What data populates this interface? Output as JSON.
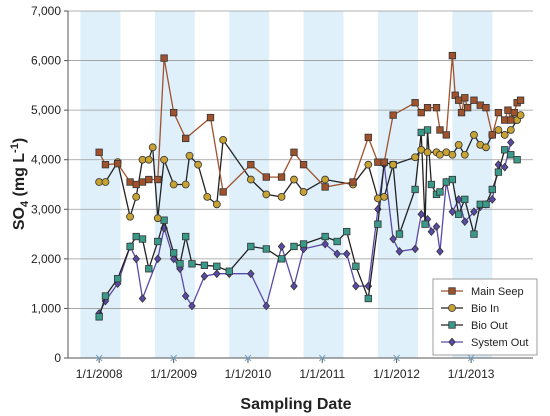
{
  "chart_data": {
    "type": "line",
    "title": "",
    "xlabel": "Sampling Date",
    "ylabel_main": "SO",
    "ylabel_sub": "4",
    "ylabel_unit_open": " (mg L",
    "ylabel_unit_sup": "-1",
    "ylabel_unit_close": ")",
    "ylim": [
      0,
      7000
    ],
    "y_ticks": [
      "0",
      "1,000",
      "2,000",
      "3,000",
      "4,000",
      "5,000",
      "6,000",
      "7,000"
    ],
    "y_tick_values": [
      0,
      1000,
      2000,
      3000,
      4000,
      5000,
      6000,
      7000
    ],
    "xlim": [
      "2007-08-01",
      "2013-11-01"
    ],
    "x_ticks": [
      "1/1/2008",
      "1/1/2009",
      "1/1/2010",
      "1/1/2011",
      "1/1/2012",
      "1/1/2013"
    ],
    "x_tick_dates": [
      "2008-01-01",
      "2009-01-01",
      "2010-01-01",
      "2011-01-01",
      "2012-01-01",
      "2013-01-01"
    ],
    "band_color": "#dff0fb",
    "bands": [
      [
        "2007-10-01",
        "2008-04-15"
      ],
      [
        "2008-10-01",
        "2009-04-15"
      ],
      [
        "2009-10-01",
        "2010-04-15"
      ],
      [
        "2010-10-01",
        "2011-04-15"
      ],
      [
        "2011-10-01",
        "2012-04-15"
      ],
      [
        "2012-10-01",
        "2013-04-15"
      ]
    ],
    "grid": "horizontal",
    "legend": "bottom-right",
    "series": [
      {
        "name": "Main Seep",
        "color": "#a0522d",
        "fill": "#a0522d",
        "marker": "square",
        "points": [
          [
            "2008-01-01",
            4150
          ],
          [
            "2008-02-01",
            3900
          ],
          [
            "2008-04-01",
            3920
          ],
          [
            "2008-06-01",
            3550
          ],
          [
            "2008-07-01",
            3500
          ],
          [
            "2008-08-01",
            3550
          ],
          [
            "2008-09-01",
            3600
          ],
          [
            "2008-10-15",
            3600
          ],
          [
            "2008-11-15",
            6050
          ],
          [
            "2009-01-01",
            4950
          ],
          [
            "2009-03-01",
            4430
          ],
          [
            "2009-07-01",
            4850
          ],
          [
            "2009-09-01",
            3350
          ],
          [
            "2010-01-15",
            3900
          ],
          [
            "2010-04-01",
            3650
          ],
          [
            "2010-06-15",
            3650
          ],
          [
            "2010-08-15",
            4150
          ],
          [
            "2010-10-01",
            3900
          ],
          [
            "2011-01-15",
            3450
          ],
          [
            "2011-06-01",
            3550
          ],
          [
            "2011-08-15",
            4450
          ],
          [
            "2011-10-01",
            3950
          ],
          [
            "2011-11-01",
            3950
          ],
          [
            "2011-12-15",
            4900
          ],
          [
            "2012-04-01",
            5150
          ],
          [
            "2012-05-01",
            4950
          ],
          [
            "2012-06-01",
            5050
          ],
          [
            "2012-07-15",
            5050
          ],
          [
            "2012-08-01",
            4600
          ],
          [
            "2012-09-01",
            4500
          ],
          [
            "2012-10-01",
            6100
          ],
          [
            "2012-10-15",
            5300
          ],
          [
            "2012-11-01",
            5200
          ],
          [
            "2012-11-15",
            4950
          ],
          [
            "2012-12-01",
            5250
          ],
          [
            "2012-12-15",
            5050
          ],
          [
            "2013-01-15",
            5200
          ],
          [
            "2013-02-15",
            5100
          ],
          [
            "2013-03-15",
            5050
          ],
          [
            "2013-04-15",
            4500
          ],
          [
            "2013-05-15",
            4950
          ],
          [
            "2013-06-15",
            4800
          ],
          [
            "2013-07-01",
            5000
          ],
          [
            "2013-07-15",
            4800
          ],
          [
            "2013-08-01",
            4950
          ],
          [
            "2013-08-15",
            5150
          ],
          [
            "2013-09-01",
            5200
          ]
        ]
      },
      {
        "name": "Bio In",
        "color": "#222222",
        "fill": "#c8a232",
        "marker": "circle",
        "points": [
          [
            "2008-01-01",
            3550
          ],
          [
            "2008-02-01",
            3550
          ],
          [
            "2008-04-01",
            3950
          ],
          [
            "2008-06-01",
            2850
          ],
          [
            "2008-07-01",
            3250
          ],
          [
            "2008-08-01",
            4000
          ],
          [
            "2008-09-01",
            4000
          ],
          [
            "2008-09-20",
            4250
          ],
          [
            "2008-10-15",
            2820
          ],
          [
            "2008-11-15",
            4000
          ],
          [
            "2009-01-01",
            3500
          ],
          [
            "2009-03-01",
            3500
          ],
          [
            "2009-03-20",
            4080
          ],
          [
            "2009-05-01",
            3900
          ],
          [
            "2009-06-15",
            3250
          ],
          [
            "2009-08-01",
            3100
          ],
          [
            "2009-09-01",
            4400
          ],
          [
            "2010-01-15",
            3600
          ],
          [
            "2010-04-01",
            3300
          ],
          [
            "2010-06-15",
            3250
          ],
          [
            "2010-08-15",
            3600
          ],
          [
            "2010-10-01",
            3350
          ],
          [
            "2011-01-15",
            3600
          ],
          [
            "2011-06-01",
            3500
          ],
          [
            "2011-08-15",
            3900
          ],
          [
            "2011-10-01",
            3220
          ],
          [
            "2011-11-01",
            3250
          ],
          [
            "2011-12-15",
            3900
          ],
          [
            "2012-04-01",
            4050
          ],
          [
            "2012-05-01",
            4200
          ],
          [
            "2012-06-01",
            4150
          ],
          [
            "2012-07-15",
            4150
          ],
          [
            "2012-08-01",
            4100
          ],
          [
            "2012-09-01",
            4150
          ],
          [
            "2012-10-01",
            4100
          ],
          [
            "2012-11-01",
            4300
          ],
          [
            "2012-12-01",
            4100
          ],
          [
            "2013-01-15",
            4500
          ],
          [
            "2013-02-15",
            4300
          ],
          [
            "2013-03-15",
            4250
          ],
          [
            "2013-04-15",
            4500
          ],
          [
            "2013-05-15",
            4600
          ],
          [
            "2013-06-15",
            4500
          ],
          [
            "2013-07-15",
            4600
          ],
          [
            "2013-08-15",
            4800
          ],
          [
            "2013-09-01",
            4900
          ]
        ]
      },
      {
        "name": "Bio Out",
        "color": "#222222",
        "fill": "#3a9a8a",
        "marker": "square",
        "points": [
          [
            "2008-01-01",
            830
          ],
          [
            "2008-02-01",
            1250
          ],
          [
            "2008-04-01",
            1600
          ],
          [
            "2008-06-01",
            2250
          ],
          [
            "2008-07-01",
            2450
          ],
          [
            "2008-08-01",
            2400
          ],
          [
            "2008-09-01",
            1800
          ],
          [
            "2008-10-15",
            2350
          ],
          [
            "2008-11-15",
            2780
          ],
          [
            "2009-01-01",
            2120
          ],
          [
            "2009-02-01",
            1900
          ],
          [
            "2009-03-01",
            2450
          ],
          [
            "2009-04-01",
            1900
          ],
          [
            "2009-06-01",
            1870
          ],
          [
            "2009-08-01",
            1850
          ],
          [
            "2009-10-01",
            1750
          ],
          [
            "2010-01-15",
            2250
          ],
          [
            "2010-04-01",
            2200
          ],
          [
            "2010-06-15",
            2000
          ],
          [
            "2010-08-15",
            2250
          ],
          [
            "2010-10-01",
            2300
          ],
          [
            "2011-01-15",
            2450
          ],
          [
            "2011-03-15",
            2350
          ],
          [
            "2011-05-01",
            2550
          ],
          [
            "2011-06-15",
            1850
          ],
          [
            "2011-08-15",
            1200
          ],
          [
            "2011-10-01",
            2700
          ],
          [
            "2011-11-01",
            3950
          ],
          [
            "2011-12-15",
            3900
          ],
          [
            "2012-01-15",
            2500
          ],
          [
            "2012-04-01",
            3400
          ],
          [
            "2012-05-01",
            4550
          ],
          [
            "2012-05-20",
            2700
          ],
          [
            "2012-06-01",
            4600
          ],
          [
            "2012-06-20",
            3500
          ],
          [
            "2012-07-15",
            3300
          ],
          [
            "2012-08-01",
            3350
          ],
          [
            "2012-09-01",
            3550
          ],
          [
            "2012-10-01",
            3600
          ],
          [
            "2012-11-01",
            2900
          ],
          [
            "2012-12-01",
            3200
          ],
          [
            "2013-01-15",
            2500
          ],
          [
            "2013-02-15",
            3100
          ],
          [
            "2013-03-15",
            3100
          ],
          [
            "2013-04-15",
            3400
          ],
          [
            "2013-05-15",
            3750
          ],
          [
            "2013-06-15",
            4200
          ],
          [
            "2013-07-15",
            4100
          ],
          [
            "2013-08-15",
            4000
          ]
        ]
      },
      {
        "name": "System Out",
        "color": "#5a4aa8",
        "fill": "#5a4aa8",
        "marker": "diamond",
        "points": [
          [
            "2008-01-01",
            900
          ],
          [
            "2008-02-01",
            1150
          ],
          [
            "2008-04-01",
            1500
          ],
          [
            "2008-06-01",
            2250
          ],
          [
            "2008-07-01",
            2000
          ],
          [
            "2008-08-01",
            1200
          ],
          [
            "2008-10-15",
            2000
          ],
          [
            "2008-11-15",
            2620
          ],
          [
            "2009-01-01",
            2000
          ],
          [
            "2009-02-01",
            1800
          ],
          [
            "2009-03-01",
            1250
          ],
          [
            "2009-04-01",
            1050
          ],
          [
            "2009-06-01",
            1650
          ],
          [
            "2009-08-01",
            1700
          ],
          [
            "2009-10-01",
            1700
          ],
          [
            "2010-01-15",
            1700
          ],
          [
            "2010-04-01",
            1050
          ],
          [
            "2010-06-15",
            2250
          ],
          [
            "2010-08-15",
            1450
          ],
          [
            "2010-10-01",
            2200
          ],
          [
            "2011-01-15",
            2300
          ],
          [
            "2011-03-15",
            2100
          ],
          [
            "2011-05-01",
            2100
          ],
          [
            "2011-06-15",
            1450
          ],
          [
            "2011-08-15",
            1450
          ],
          [
            "2011-10-01",
            3000
          ],
          [
            "2011-11-01",
            3900
          ],
          [
            "2011-12-15",
            2400
          ],
          [
            "2012-01-15",
            2150
          ],
          [
            "2012-04-01",
            2200
          ],
          [
            "2012-05-01",
            2900
          ],
          [
            "2012-06-01",
            2800
          ],
          [
            "2012-06-20",
            2550
          ],
          [
            "2012-07-15",
            2650
          ],
          [
            "2012-08-01",
            2150
          ],
          [
            "2012-09-01",
            3550
          ],
          [
            "2012-10-01",
            2950
          ],
          [
            "2012-11-01",
            3200
          ],
          [
            "2012-12-01",
            2750
          ],
          [
            "2013-01-15",
            2950
          ],
          [
            "2013-02-15",
            3050
          ],
          [
            "2013-03-15",
            3100
          ],
          [
            "2013-04-15",
            3200
          ],
          [
            "2013-05-15",
            3900
          ],
          [
            "2013-06-15",
            3850
          ],
          [
            "2013-07-15",
            4350
          ]
        ]
      }
    ]
  }
}
